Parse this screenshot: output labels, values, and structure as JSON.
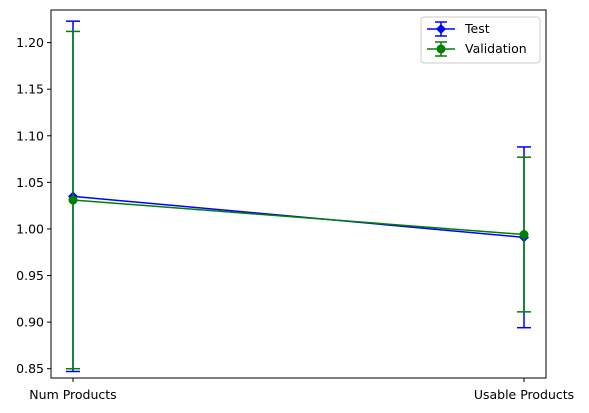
{
  "chart_data": {
    "type": "line",
    "categories": [
      "Num Products",
      "Usable Products"
    ],
    "yticks": [
      "0.85",
      "0.90",
      "0.95",
      "1.00",
      "1.05",
      "1.10",
      "1.15",
      "1.20"
    ],
    "ylim": [
      0.84,
      1.235
    ],
    "grid": false,
    "legend_position": "upper-right",
    "series": [
      {
        "name": "Test",
        "values": [
          1.035,
          0.991
        ],
        "lower": [
          0.847,
          0.894
        ],
        "upper": [
          1.223,
          1.088
        ],
        "color": "#0000ff",
        "marker": "diamond"
      },
      {
        "name": "Validation",
        "values": [
          1.031,
          0.994
        ],
        "lower": [
          0.85,
          0.911
        ],
        "upper": [
          1.212,
          1.077
        ],
        "color": "#008000",
        "marker": "circle"
      }
    ]
  }
}
